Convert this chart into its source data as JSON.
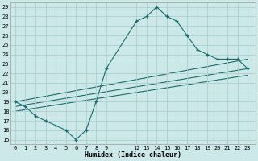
{
  "xlabel": "Humidex (Indice chaleur)",
  "background_color": "#cde8e8",
  "grid_color": "#aacfcf",
  "line_color": "#1a6b6b",
  "xlim": [
    -0.5,
    23.8
  ],
  "ylim": [
    14.5,
    29.5
  ],
  "xticks": [
    0,
    1,
    2,
    3,
    4,
    5,
    6,
    7,
    8,
    9,
    12,
    13,
    14,
    15,
    16,
    17,
    18,
    19,
    20,
    21,
    22,
    23
  ],
  "yticks": [
    15,
    16,
    17,
    18,
    19,
    20,
    21,
    22,
    23,
    24,
    25,
    26,
    27,
    28,
    29
  ],
  "main_series": {
    "x": [
      0,
      1,
      2,
      3,
      4,
      5,
      6,
      7,
      8,
      9,
      12,
      13,
      14,
      15,
      16,
      17,
      18,
      19,
      20,
      21,
      22,
      23
    ],
    "y": [
      19.0,
      18.5,
      17.5,
      17.0,
      16.5,
      16.0,
      15.0,
      16.0,
      19.0,
      22.5,
      27.5,
      28.0,
      29.0,
      28.0,
      27.5,
      26.0,
      24.5,
      24.0,
      23.5,
      23.5,
      23.5,
      22.5
    ]
  },
  "trend_lines": [
    {
      "x": [
        0,
        23
      ],
      "y": [
        19.0,
        23.5
      ]
    },
    {
      "x": [
        0,
        23
      ],
      "y": [
        18.5,
        22.5
      ]
    },
    {
      "x": [
        0,
        23
      ],
      "y": [
        18.0,
        21.8
      ]
    }
  ]
}
